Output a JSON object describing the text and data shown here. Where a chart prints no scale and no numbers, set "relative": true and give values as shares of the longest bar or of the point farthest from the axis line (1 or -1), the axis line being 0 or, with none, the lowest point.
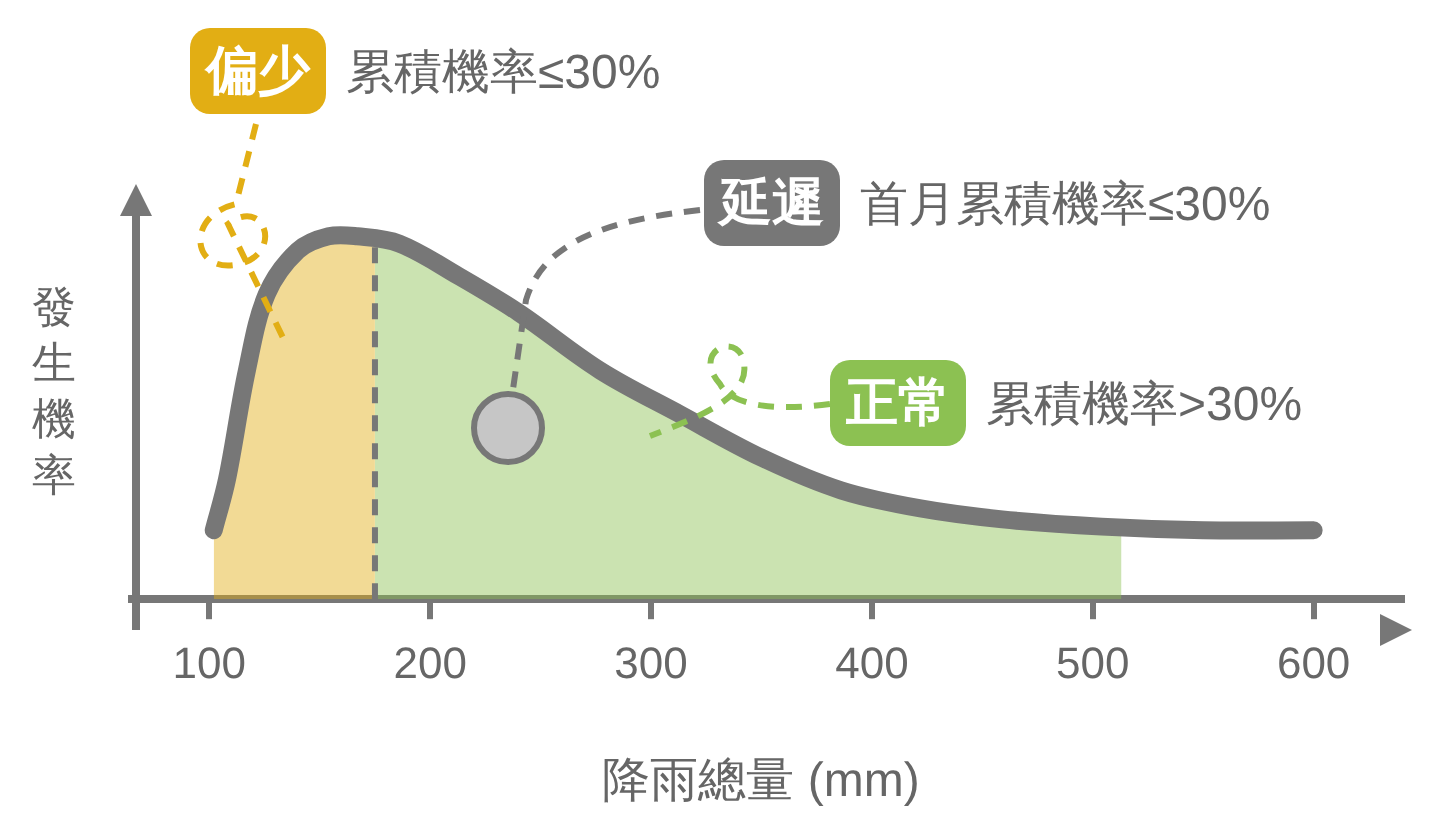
{
  "chart_data": {
    "type": "line",
    "relative": true,
    "xlabel": "降雨總量 (mm)",
    "ylabel": "發生機率",
    "xlim": [
      65,
      640
    ],
    "xticks": [
      100,
      200,
      300,
      400,
      500,
      600
    ],
    "grid": false,
    "legend": false,
    "marker": "none",
    "series": [
      {
        "type": "area",
        "color": "#e2ae14",
        "x": [
          102,
          108,
          117,
          126,
          140,
          154,
          167,
          175
        ],
        "values": [
          0.19,
          0.33,
          0.63,
          0.84,
          0.96,
          1.0,
          1.0,
          0.99
        ]
      },
      {
        "type": "line",
        "color": "#777777",
        "x": [
          102,
          108,
          117,
          126,
          140,
          154,
          167,
          186,
          213,
          240,
          277,
          313,
          350,
          386,
          422,
          459,
          504,
          550,
          600
        ],
        "values": [
          0.19,
          0.33,
          0.63,
          0.84,
          0.96,
          1.0,
          1.0,
          0.98,
          0.89,
          0.79,
          0.63,
          0.51,
          0.39,
          0.3,
          0.25,
          0.22,
          0.2,
          0.19,
          0.19
        ]
      },
      {
        "type": "area",
        "color": "#8cc152",
        "x": [
          175,
          186,
          213,
          240,
          277,
          313,
          350,
          386,
          422,
          459,
          504,
          513
        ],
        "values": [
          0.99,
          0.98,
          0.89,
          0.79,
          0.63,
          0.51,
          0.39,
          0.3,
          0.25,
          0.22,
          0.2,
          0.2
        ]
      }
    ],
    "ref_lines": [
      {
        "axis": "x",
        "value": 175,
        "color": "#777777",
        "line_style": "dashed"
      }
    ],
    "annotations": [
      "偏少",
      "累積機率≤30%",
      "延遲",
      "首月累積機率≤30%",
      "正常",
      "累積機率>30%"
    ]
  }
}
